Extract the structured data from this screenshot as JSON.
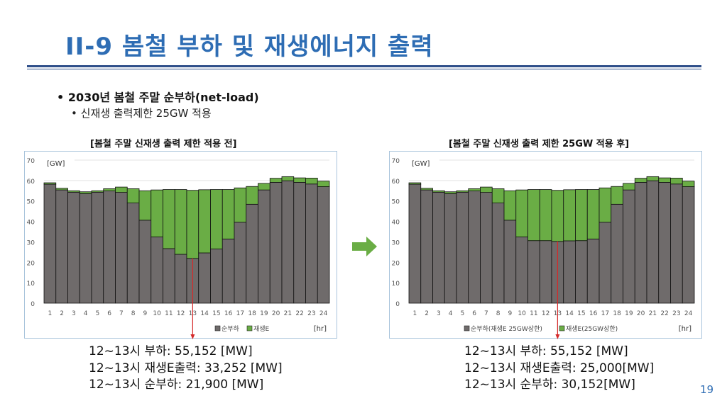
{
  "slide": {
    "title": "II-9  봄철 부하 및 재생에너지 출력",
    "bullet1": "2030년 봄철 주말 순부하(net-load)",
    "bullet2": "신재생 출력제한 25GW 적용",
    "page_number": "19",
    "bullet_marker": "•"
  },
  "colors": {
    "title": "#2e6db4",
    "net_load": "#6f6b6b",
    "renewable": "#6aad45",
    "arrow_red": "#d42a2a",
    "arrow_green": "#6aad45"
  },
  "notes_before": [
    "12~13시 부하: 55,152 [MW]",
    "12~13시 재생E출력: 33,252 [MW]",
    "12~13시 순부하: 21,900 [MW]"
  ],
  "notes_after": [
    "12~13시 부하: 55,152 [MW]",
    "12~13시 재생E출력: 25,000[MW]",
    "12~13시 순부하: 30,152[MW]"
  ],
  "chart_data": [
    {
      "type": "bar",
      "stacked": true,
      "title": "[봄철 주말 신재생 출력 제한 적용 전]",
      "ylabel": "[GW]",
      "xlabel": "[hr]",
      "ylim": [
        0,
        70
      ],
      "yticks": [
        0,
        10,
        20,
        30,
        40,
        50,
        60,
        70
      ],
      "categories": [
        "1",
        "2",
        "3",
        "4",
        "5",
        "6",
        "7",
        "8",
        "9",
        "10",
        "11",
        "12",
        "13",
        "14",
        "15",
        "16",
        "17",
        "18",
        "19",
        "20",
        "21",
        "22",
        "23",
        "24"
      ],
      "series": [
        {
          "name": "순부하",
          "values": [
            58.2,
            55.4,
            54.3,
            53.6,
            54.3,
            54.9,
            54.2,
            49.0,
            40.6,
            32.4,
            26.7,
            23.9,
            21.9,
            24.6,
            26.5,
            31.4,
            39.6,
            48.4,
            55.4,
            59.1,
            59.9,
            59.1,
            58.3,
            57.0
          ]
        },
        {
          "name": "재생E",
          "values": [
            0.7,
            0.8,
            0.7,
            0.9,
            0.7,
            1.1,
            2.6,
            7.0,
            14.4,
            23.0,
            28.9,
            31.7,
            33.3,
            30.9,
            29.1,
            24.2,
            16.8,
            8.7,
            3.2,
            2.0,
            2.0,
            2.2,
            2.9,
            2.7
          ]
        }
      ]
    },
    {
      "type": "bar",
      "stacked": true,
      "title": "[봄철 주말 신재생 출력 제한 25GW 적용 후]",
      "ylabel": "[GW]",
      "xlabel": "[hr]",
      "ylim": [
        0,
        70
      ],
      "yticks": [
        0,
        10,
        20,
        30,
        40,
        50,
        60,
        70
      ],
      "categories": [
        "1",
        "2",
        "3",
        "4",
        "5",
        "6",
        "7",
        "8",
        "9",
        "10",
        "11",
        "12",
        "13",
        "14",
        "15",
        "16",
        "17",
        "18",
        "19",
        "20",
        "21",
        "22",
        "23",
        "24"
      ],
      "series": [
        {
          "name": "순부하(재생E 25GW상한)",
          "values": [
            58.2,
            55.4,
            54.3,
            53.6,
            54.3,
            54.9,
            54.2,
            49.0,
            40.6,
            32.4,
            30.6,
            30.6,
            30.2,
            30.5,
            30.6,
            31.4,
            39.6,
            48.4,
            55.4,
            59.1,
            59.9,
            59.1,
            58.3,
            57.0
          ]
        },
        {
          "name": "재생E(25GW상한)",
          "values": [
            0.7,
            0.8,
            0.7,
            0.9,
            0.7,
            1.1,
            2.6,
            7.0,
            14.4,
            23.0,
            25.0,
            25.0,
            25.0,
            25.0,
            25.0,
            24.2,
            16.8,
            8.7,
            3.2,
            2.0,
            2.0,
            2.2,
            2.9,
            2.7
          ]
        }
      ]
    }
  ]
}
